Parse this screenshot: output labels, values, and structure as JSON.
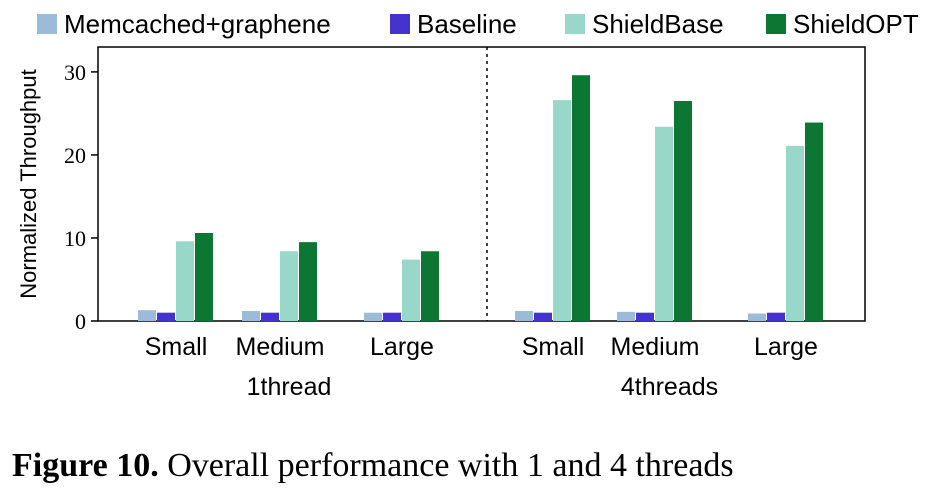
{
  "chart_data": {
    "type": "bar",
    "ylabel": "Normalized Throughput",
    "ylim": [
      0,
      33
    ],
    "yticks": [
      0,
      10,
      20,
      30
    ],
    "legend_position": "top",
    "grid": false,
    "categories": [
      "Small",
      "Medium",
      "Large",
      "Small",
      "Medium",
      "Large"
    ],
    "groups": [
      {
        "label": "1thread",
        "category_indices": [
          0,
          1,
          2
        ]
      },
      {
        "label": "4threads",
        "category_indices": [
          3,
          4,
          5
        ]
      }
    ],
    "series": [
      {
        "name": "Memcached+graphene",
        "color": "#9bbbd9",
        "values": [
          1.3,
          1.2,
          1.0,
          1.2,
          1.1,
          0.9
        ]
      },
      {
        "name": "Baseline",
        "color": "#4433cc",
        "values": [
          1.0,
          1.0,
          1.0,
          1.0,
          1.0,
          1.0
        ]
      },
      {
        "name": "ShieldBase",
        "color": "#99d8c8",
        "values": [
          9.6,
          8.4,
          7.4,
          26.6,
          23.4,
          21.1
        ]
      },
      {
        "name": "ShieldOPT",
        "color": "#0b7733",
        "values": [
          10.6,
          9.5,
          8.4,
          29.6,
          26.5,
          23.9
        ]
      }
    ]
  },
  "caption": {
    "label": "Figure 10.",
    "text": " Overall performance with 1 and 4 threads"
  }
}
